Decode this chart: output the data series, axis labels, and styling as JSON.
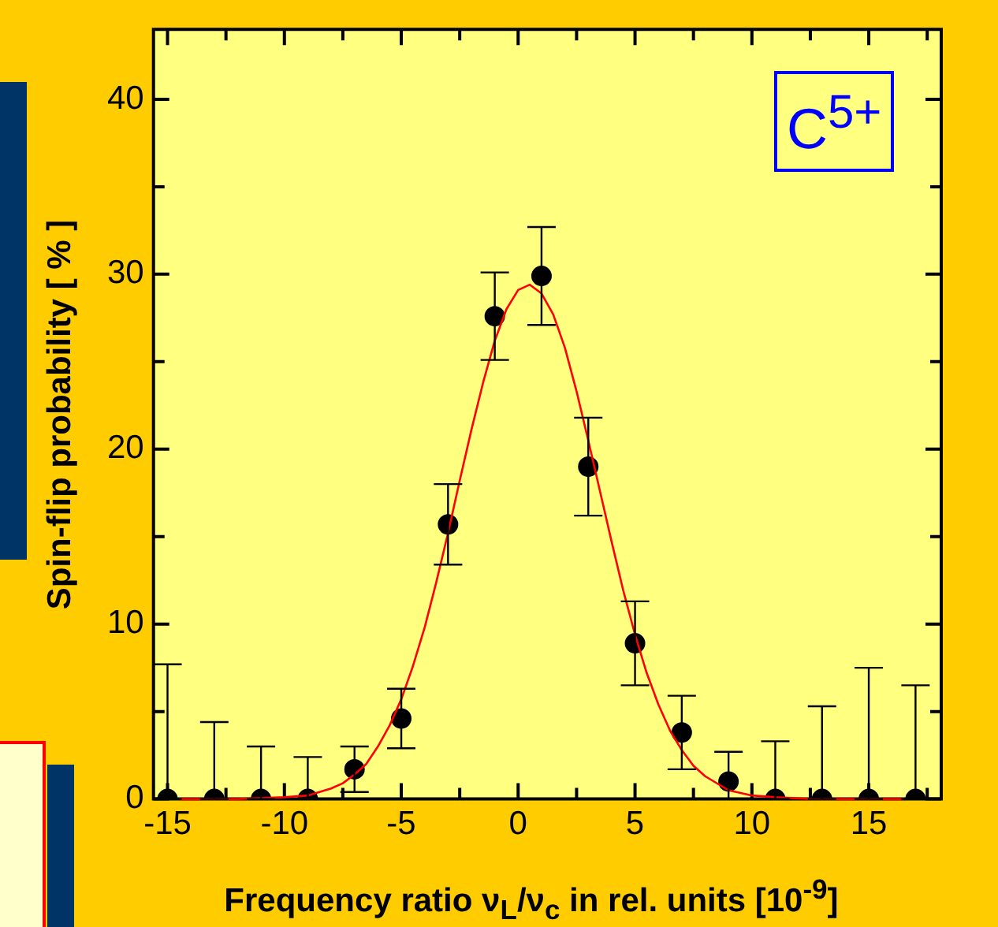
{
  "chart_data": {
    "type": "scatter",
    "xlabel": "Frequency ratio ν$_{L}$/ν$_{c}$ in rel. units  [10$^{-9}$]",
    "ylabel": "Spin-flip probability [ % ]",
    "annotations": [
      "C$^{5+}$"
    ],
    "x": [
      -15,
      -13,
      -11,
      -9,
      -7,
      -5,
      -3,
      -1,
      1,
      3,
      5,
      7,
      9,
      11,
      13,
      15,
      17
    ],
    "series": [
      {
        "color": "#000000",
        "marker": "circle",
        "values": [
          0,
          0,
          0,
          0,
          1.7,
          4.6,
          15.7,
          27.6,
          29.9,
          19.0,
          8.9,
          3.8,
          1.0,
          0,
          0,
          0,
          0
        ],
        "errors": [
          [
            0,
            7.7
          ],
          [
            0,
            4.4
          ],
          [
            0,
            3.0
          ],
          [
            0,
            2.4
          ],
          1.3,
          1.7,
          2.3,
          2.5,
          2.8,
          2.8,
          2.4,
          2.1,
          [
            0,
            2.7
          ],
          [
            0,
            3.3
          ],
          [
            0,
            5.3
          ],
          [
            0,
            7.5
          ],
          [
            0,
            6.5
          ]
        ]
      },
      {
        "type": "line",
        "color": "#ff0000",
        "x": [
          -14.5,
          -13.8,
          -12,
          -10,
          -9,
          -8,
          -7.5,
          -7,
          -6.5,
          -6,
          -5.5,
          -5,
          -4.5,
          -4,
          -3.5,
          -3,
          -2.5,
          -2,
          -1.5,
          -1,
          -0.5,
          0,
          0.5,
          1,
          1.5,
          2,
          2.5,
          3,
          3.5,
          4,
          4.5,
          5,
          5.5,
          6,
          6.5,
          7,
          7.5,
          8,
          9,
          10,
          11,
          12.5,
          15.8,
          16.5
        ],
        "values": [
          0,
          0,
          0,
          0.1,
          0.2,
          0.6,
          0.9,
          1.4,
          2.0,
          3.0,
          4.2,
          5.7,
          7.6,
          9.8,
          12.4,
          15.2,
          18.2,
          21.1,
          23.8,
          26.2,
          28.0,
          29.1,
          29.4,
          28.9,
          27.7,
          25.8,
          23.3,
          20.5,
          17.6,
          14.7,
          11.9,
          9.4,
          7.2,
          5.4,
          3.9,
          2.8,
          1.9,
          1.3,
          0.5,
          0.2,
          0.1,
          0,
          0,
          0
        ]
      }
    ],
    "xlim": [
      -15.6,
      18.1
    ],
    "xticks": [
      -15,
      {
        "value": -12.5,
        "label": null
      },
      -10,
      {
        "value": -7.5,
        "label": null
      },
      -5,
      {
        "value": -2.5,
        "label": null
      },
      0,
      {
        "value": 2.5,
        "label": null
      },
      5,
      {
        "value": 7.5,
        "label": null
      },
      10,
      {
        "value": 12.5,
        "label": null
      },
      15,
      {
        "value": 17.5,
        "label": null
      }
    ],
    "ylim": [
      0,
      44
    ],
    "yticks": [
      0,
      {
        "value": 5,
        "label": null
      },
      10,
      {
        "value": 15,
        "label": null
      },
      20,
      {
        "value": 25,
        "label": null
      },
      30,
      {
        "value": 35,
        "label": null
      },
      40
    ],
    "grid": false,
    "legend": false
  }
}
